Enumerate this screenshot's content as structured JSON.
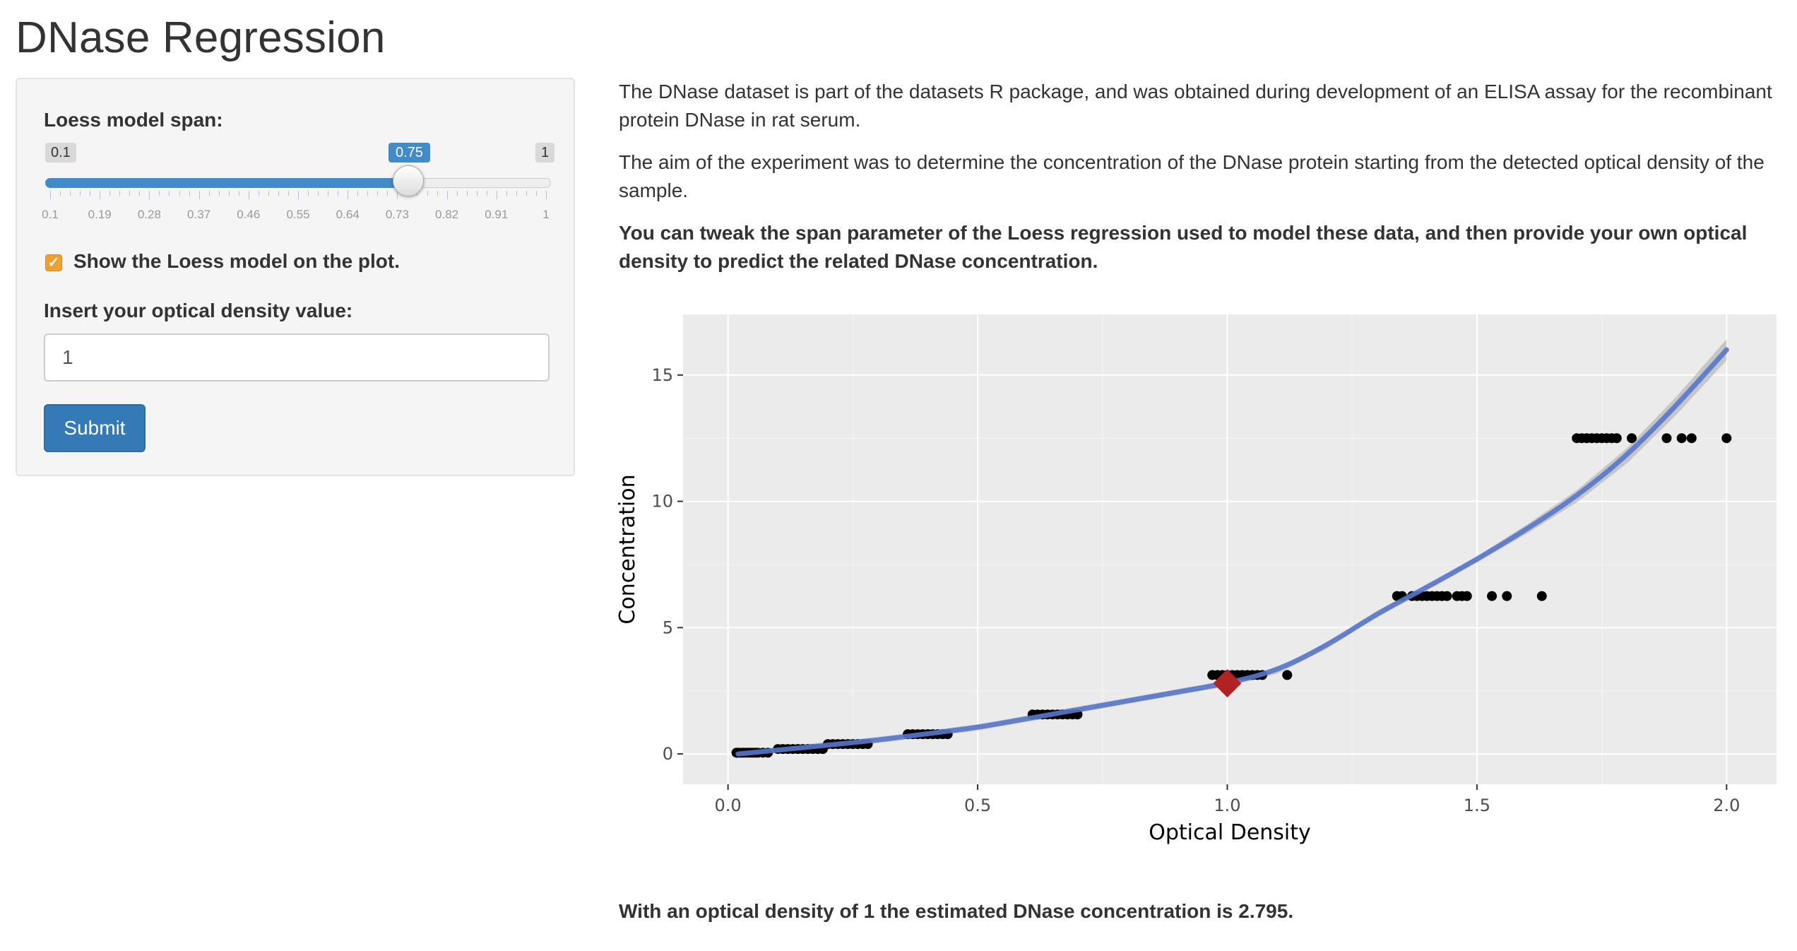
{
  "app": {
    "title": "DNase Regression"
  },
  "sidebar": {
    "span_label": "Loess model span:",
    "slider": {
      "min_label": "0.1",
      "max_label": "1",
      "min": 0.1,
      "max": 1,
      "value": 0.75,
      "value_label": "0.75",
      "tick_labels": [
        "0.1",
        "0.19",
        "0.28",
        "0.37",
        "0.46",
        "0.55",
        "0.64",
        "0.73",
        "0.82",
        "0.91",
        "1"
      ]
    },
    "checkbox_checked": true,
    "checkbox_label": "Show the Loess model on the plot.",
    "od_label": "Insert your optical density value:",
    "od_value": "1",
    "submit_label": "Submit",
    "accent_color": "#428bca",
    "checkbox_color": "#f0a030"
  },
  "main": {
    "para1": "The DNase dataset is part of the datasets R package, and was obtained during development of an ELISA assay for the recombinant protein DNase in rat serum.",
    "para2": "The aim of the experiment was to determine the concentration of the DNase protein starting from the detected optical density of the sample.",
    "para3": "You can tweak the span parameter of the Loess regression used to model these data, and then provide your own optical density to predict the related DNase concentration.",
    "result": "With an optical density of 1 the estimated DNase concentration is 2.795."
  },
  "chart_data": {
    "type": "scatter",
    "xlabel": "Optical Density",
    "ylabel": "Concentration",
    "xlim": [
      -0.09,
      2.1
    ],
    "ylim": [
      -1.2,
      17.4
    ],
    "x_ticks": [
      0,
      0.5,
      1,
      1.5,
      2
    ],
    "x_tick_labels": [
      "0.0",
      "0.5",
      "1.0",
      "1.5",
      "2.0"
    ],
    "y_ticks": [
      0,
      5,
      10,
      15
    ],
    "y_tick_labels": [
      "0",
      "5",
      "10",
      "15"
    ],
    "grid": true,
    "background": "#ebebeb",
    "point_color": "#000000",
    "curve_color": "#5577cc",
    "prediction_color": "#b22222",
    "points": {
      "x": [
        0.017,
        0.018,
        0.021,
        0.025,
        0.03,
        0.035,
        0.04,
        0.045,
        0.05,
        0.055,
        0.06,
        0.07,
        0.08,
        0.1,
        0.11,
        0.12,
        0.13,
        0.14,
        0.15,
        0.16,
        0.17,
        0.18,
        0.19,
        0.2,
        0.21,
        0.22,
        0.23,
        0.24,
        0.25,
        0.26,
        0.27,
        0.28,
        0.36,
        0.37,
        0.38,
        0.39,
        0.4,
        0.41,
        0.42,
        0.43,
        0.44,
        0.61,
        0.62,
        0.63,
        0.64,
        0.65,
        0.66,
        0.67,
        0.68,
        0.69,
        0.7,
        0.97,
        0.98,
        0.99,
        1.0,
        1.01,
        1.02,
        1.03,
        1.04,
        1.05,
        1.06,
        1.07,
        1.12,
        1.34,
        1.35,
        1.37,
        1.38,
        1.39,
        1.4,
        1.41,
        1.42,
        1.43,
        1.44,
        1.46,
        1.47,
        1.48,
        1.53,
        1.56,
        1.63,
        1.7,
        1.71,
        1.72,
        1.73,
        1.74,
        1.75,
        1.76,
        1.77,
        1.78,
        1.81,
        1.88,
        1.91,
        1.93,
        2.0
      ],
      "y": [
        0.049,
        0.049,
        0.049,
        0.049,
        0.049,
        0.049,
        0.049,
        0.049,
        0.049,
        0.049,
        0.049,
        0.049,
        0.049,
        0.195,
        0.195,
        0.195,
        0.195,
        0.195,
        0.195,
        0.195,
        0.195,
        0.195,
        0.195,
        0.391,
        0.391,
        0.391,
        0.391,
        0.391,
        0.391,
        0.391,
        0.391,
        0.391,
        0.781,
        0.781,
        0.781,
        0.781,
        0.781,
        0.781,
        0.781,
        0.781,
        0.781,
        1.563,
        1.563,
        1.563,
        1.563,
        1.563,
        1.563,
        1.563,
        1.563,
        1.563,
        1.563,
        3.125,
        3.125,
        3.125,
        3.125,
        3.125,
        3.125,
        3.125,
        3.125,
        3.125,
        3.125,
        3.125,
        3.125,
        6.25,
        6.25,
        6.25,
        6.25,
        6.25,
        6.25,
        6.25,
        6.25,
        6.25,
        6.25,
        6.25,
        6.25,
        6.25,
        6.25,
        6.25,
        6.25,
        12.5,
        12.5,
        12.5,
        12.5,
        12.5,
        12.5,
        12.5,
        12.5,
        12.5,
        12.5,
        12.5,
        12.5,
        12.5,
        12.5
      ]
    },
    "loess_curve": {
      "x": [
        0.02,
        0.1,
        0.2,
        0.3,
        0.4,
        0.5,
        0.6,
        0.7,
        0.8,
        0.9,
        1.0,
        1.1,
        1.2,
        1.3,
        1.4,
        1.5,
        1.6,
        1.7,
        1.8,
        1.9,
        2.0
      ],
      "y": [
        0.0,
        0.15,
        0.35,
        0.55,
        0.8,
        1.05,
        1.4,
        1.75,
        2.1,
        2.45,
        2.795,
        3.3,
        4.3,
        5.55,
        6.6,
        7.7,
        8.9,
        10.2,
        11.8,
        13.8,
        16.0
      ]
    },
    "prediction": {
      "x": 1,
      "y": 2.795
    }
  }
}
